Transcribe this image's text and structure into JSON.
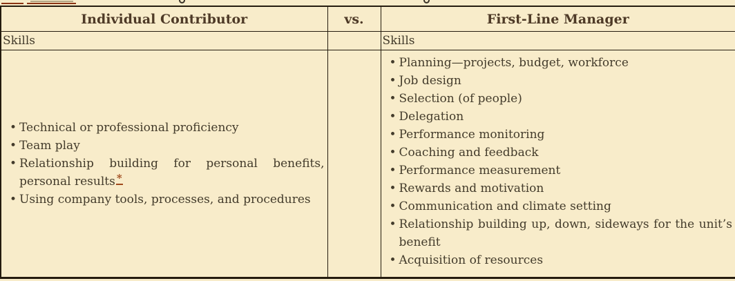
{
  "page": {
    "background_color": "#f8ecca",
    "border_color": "#241b0e",
    "text_color": "#433b2b",
    "header_text_color": "#4e3a27",
    "accent_color": "#a04a1c"
  },
  "cropped_heading": {
    "note": "only the bottom sliver of a text line above the table is visible (underlined fragment and letter descenders)",
    "underline_color": "#8a3414"
  },
  "table": {
    "bullet_char": "•",
    "header": {
      "left": "Individual Contributor",
      "middle": "vs.",
      "right": "First-Line Manager"
    },
    "subheader": {
      "left": "Skills",
      "right": "Skills"
    },
    "individual_contributor_items": [
      {
        "text": "Technical or professional proficiency"
      },
      {
        "text": "Team play"
      },
      {
        "text": "Relationship building for personal benefits, personal results",
        "footnote_marker": "*"
      },
      {
        "text": "Using company tools, processes, and procedures"
      }
    ],
    "first_line_manager_items": [
      {
        "text": "Planning—projects, budget, workforce"
      },
      {
        "text": "Job design"
      },
      {
        "text": "Selection (of people)"
      },
      {
        "text": "Delegation"
      },
      {
        "text": "Performance monitoring"
      },
      {
        "text": "Coaching and feedback"
      },
      {
        "text": "Performance measurement"
      },
      {
        "text": "Rewards and motivation"
      },
      {
        "text": "Communication and climate setting"
      },
      {
        "text": "Relationship building up, down, sideways for the unit’s benefit"
      },
      {
        "text": "Acquisition of resources"
      }
    ]
  }
}
